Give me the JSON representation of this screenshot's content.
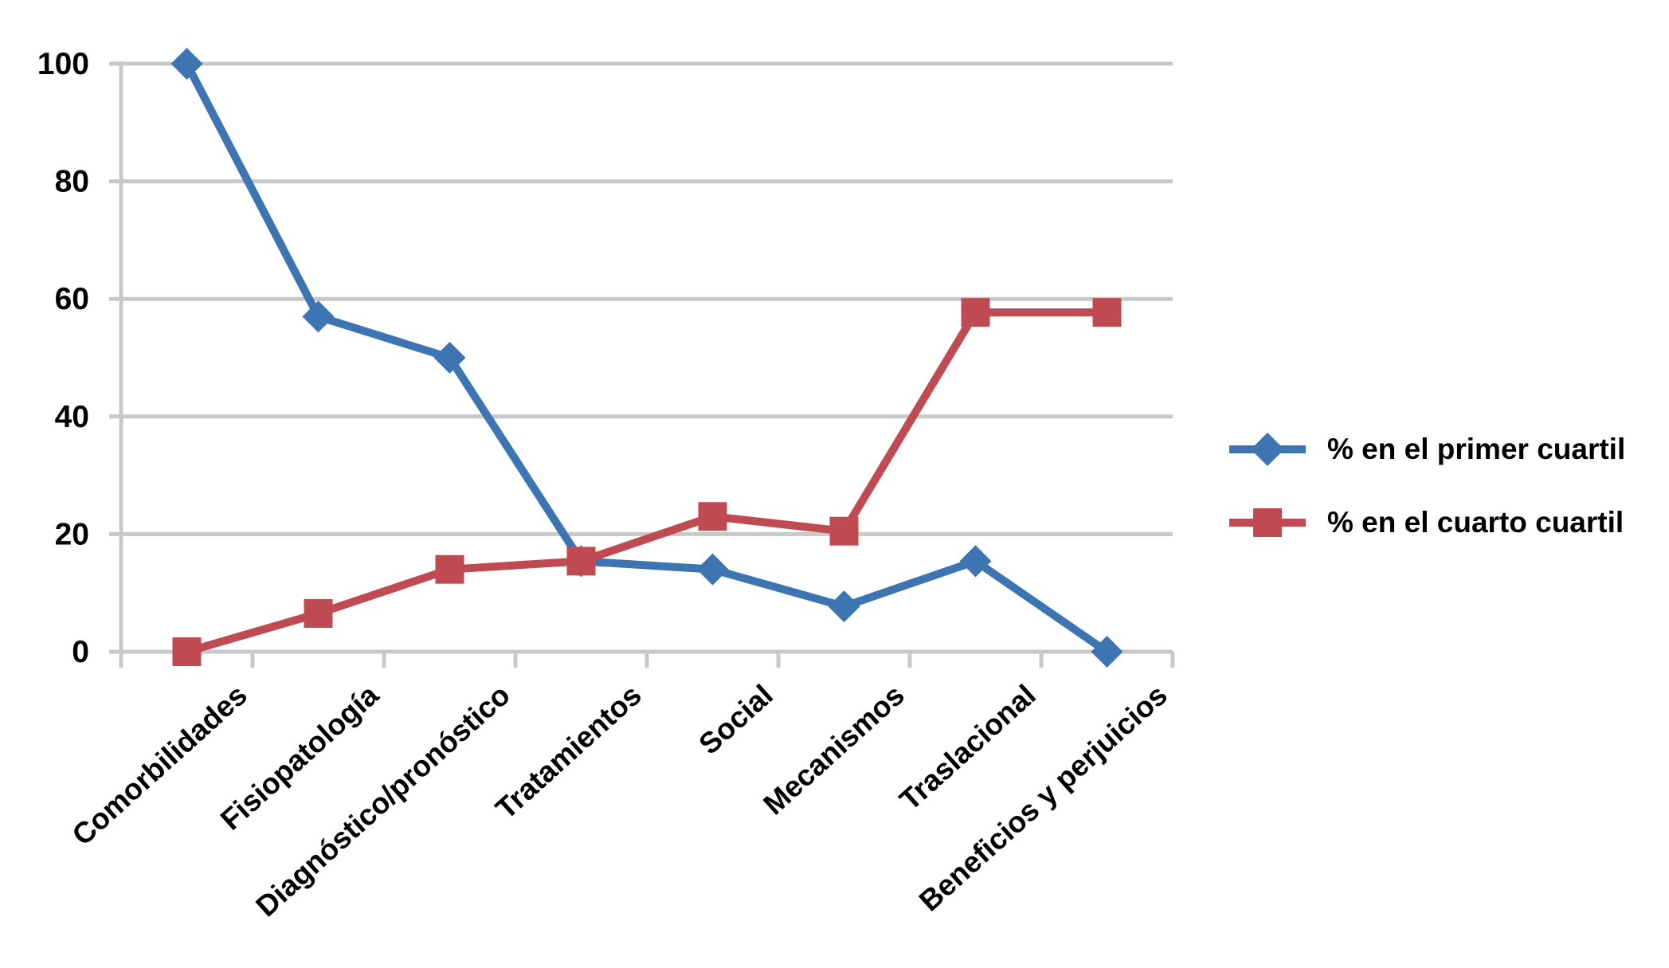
{
  "chart_data": {
    "type": "line",
    "title": "",
    "xlabel": "",
    "ylabel": "",
    "categories": [
      "Comorbilidades",
      "Fisiopatología",
      "Diagnóstico/pronóstico",
      "Tratamientos",
      "Social",
      "Mecanismos",
      "Traslacional",
      "Beneficios y perjuicios"
    ],
    "series": [
      {
        "name": "% en el primer cuartil",
        "marker": "diamond",
        "color": "#3C75B1",
        "values": [
          100,
          57,
          50,
          15.4,
          14,
          7.7,
          15.4,
          0
        ]
      },
      {
        "name": "% en el cuarto cuartil",
        "marker": "square",
        "color": "#BF4A51",
        "values": [
          0,
          6.5,
          14,
          15.4,
          23,
          20.5,
          57.7,
          57.7
        ]
      }
    ],
    "ylim": [
      0,
      100
    ],
    "yticks": [
      0,
      20,
      40,
      60,
      80,
      100
    ],
    "grid": true,
    "gridline_color": "#C8C8C8",
    "axis_color": "#C8C8C8",
    "text_color": "#000000",
    "background": "#FFFFFF",
    "legend_position": "right",
    "x_label_rotation_deg": -42
  }
}
